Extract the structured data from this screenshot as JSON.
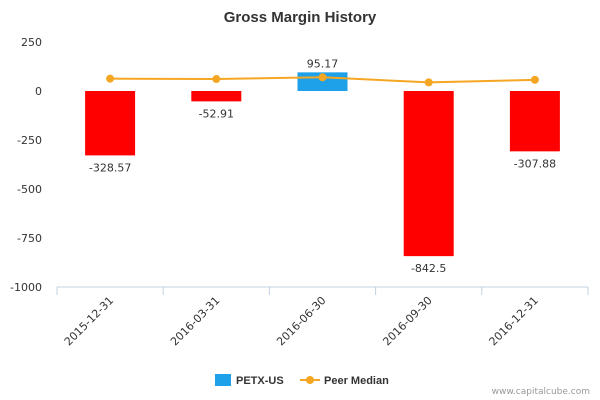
{
  "chart_data": {
    "type": "bar",
    "title": "Gross Margin History",
    "categories": [
      "2015-12-31",
      "2016-03-31",
      "2016-06-30",
      "2016-09-30",
      "2016-12-31"
    ],
    "series": [
      {
        "name": "PETX-US",
        "type": "bar",
        "values": [
          -328.57,
          -52.91,
          95.17,
          -842.5,
          -307.88
        ],
        "labels": [
          "-328.57",
          "-52.91",
          "95.17",
          "-842.5",
          "-307.88"
        ],
        "color": "#1ea1e8",
        "negative_color": "#ff0000"
      },
      {
        "name": "Peer Median",
        "type": "line",
        "values": [
          63,
          61,
          70,
          44,
          57
        ],
        "color": "#f5a623"
      }
    ],
    "yticks": [
      250,
      0,
      -250,
      -500,
      -750,
      -1000
    ],
    "ytick_labels": [
      "250",
      "0",
      "-250",
      "-500",
      "-750",
      "-1000"
    ],
    "ylim": [
      -1000,
      250
    ],
    "legend_position": "bottom"
  },
  "credit": "www.capitalcube.com"
}
